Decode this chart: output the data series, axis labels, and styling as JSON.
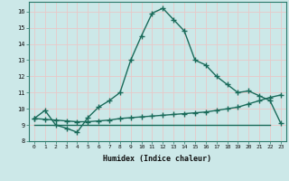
{
  "xlabel": "Humidex (Indice chaleur)",
  "ylabel": "",
  "bg_color": "#cce8e8",
  "grid_color": "#e8c8c8",
  "line_color": "#1a6b5a",
  "xlim": [
    -0.5,
    23.5
  ],
  "ylim": [
    8,
    16.6
  ],
  "xticks": [
    0,
    1,
    2,
    3,
    4,
    5,
    6,
    7,
    8,
    9,
    10,
    11,
    12,
    13,
    14,
    15,
    16,
    17,
    18,
    19,
    20,
    21,
    22,
    23
  ],
  "yticks": [
    8,
    9,
    10,
    11,
    12,
    13,
    14,
    15,
    16
  ],
  "curve1_x": [
    0,
    1,
    2,
    3,
    4,
    5,
    6,
    7,
    8,
    9,
    10,
    11,
    12,
    13,
    14,
    15,
    16,
    17,
    18,
    19,
    20,
    21,
    22,
    23
  ],
  "curve1_y": [
    9.4,
    9.9,
    9.0,
    8.8,
    8.55,
    9.45,
    10.1,
    10.5,
    11.0,
    13.0,
    14.5,
    15.9,
    16.2,
    15.5,
    14.8,
    13.0,
    12.7,
    12.0,
    11.5,
    11.0,
    11.1,
    10.8,
    10.5,
    9.1
  ],
  "curve2_x": [
    0,
    1,
    2,
    3,
    4,
    5,
    6,
    7,
    8,
    9,
    10,
    11,
    12,
    13,
    14,
    15,
    16,
    17,
    18,
    19,
    20,
    21,
    22,
    23
  ],
  "curve2_y": [
    9.4,
    9.35,
    9.3,
    9.25,
    9.2,
    9.2,
    9.25,
    9.3,
    9.4,
    9.45,
    9.5,
    9.55,
    9.6,
    9.65,
    9.7,
    9.75,
    9.8,
    9.9,
    10.0,
    10.1,
    10.3,
    10.5,
    10.7,
    10.85
  ],
  "curve3_x": [
    0,
    22
  ],
  "curve3_y": [
    9.0,
    9.0
  ],
  "marker": "+",
  "markersize": 4.5,
  "linewidth": 1.0
}
